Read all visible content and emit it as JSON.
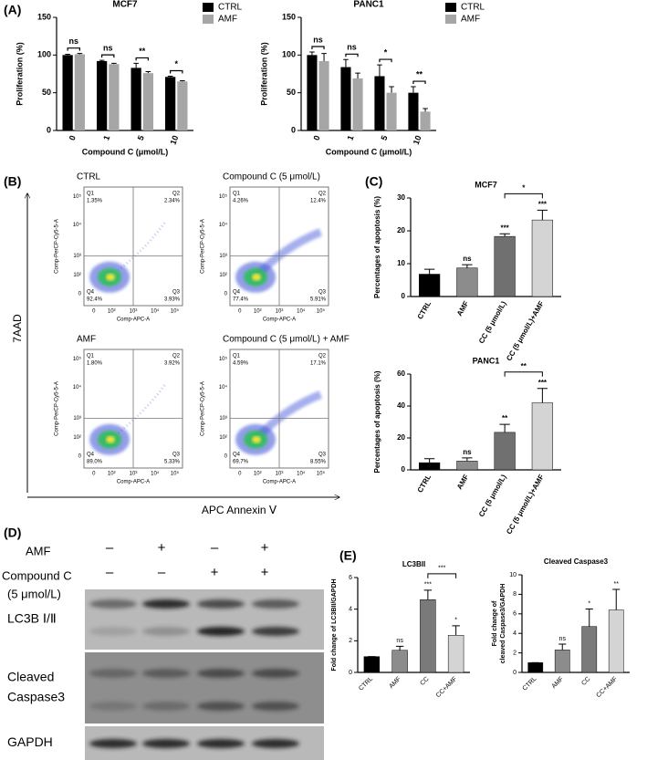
{
  "panel_labels": [
    "(A)",
    "(B)",
    "(C)",
    "(D)",
    "(E)"
  ],
  "chart_data": [
    {
      "type": "bar",
      "title": "MCF7",
      "x_label": "Compound C (μmol/L)",
      "y_label": "Proliferation (%)",
      "categories": [
        "0",
        "1",
        "5",
        "10"
      ],
      "series": [
        {
          "name": "CTRL",
          "color": "#000000",
          "values": [
            100,
            92,
            83,
            71
          ],
          "errors": [
            1,
            1,
            6,
            1
          ]
        },
        {
          "name": "AMF",
          "color": "#a6a6a6",
          "values": [
            101,
            88,
            76,
            65
          ],
          "errors": [
            1,
            1,
            2,
            1
          ]
        }
      ],
      "annotations": [
        "ns",
        "ns",
        "**",
        "*"
      ],
      "ylim": [
        0,
        150
      ],
      "yticks": [
        0,
        50,
        100,
        150
      ],
      "legend": "top-right"
    },
    {
      "type": "bar",
      "title": "PANC1",
      "x_label": "Compound C (μmol/L)",
      "y_label": "Proliferation (%)",
      "categories": [
        "0",
        "1",
        "5",
        "10"
      ],
      "series": [
        {
          "name": "CTRL",
          "color": "#000000",
          "values": [
            100,
            84,
            72,
            50
          ],
          "errors": [
            4,
            10,
            15,
            8
          ]
        },
        {
          "name": "AMF",
          "color": "#a6a6a6",
          "values": [
            92,
            69,
            50,
            25
          ],
          "errors": [
            10,
            7,
            8,
            4
          ]
        }
      ],
      "annotations": [
        "ns",
        "ns",
        "*",
        "**"
      ],
      "ylim": [
        0,
        150
      ],
      "yticks": [
        0,
        50,
        100,
        150
      ],
      "legend": "top-right"
    },
    {
      "type": "bar",
      "title": "MCF7",
      "y_label": "Percentages of apoptosis (%)",
      "categories": [
        "CTRL",
        "AMF",
        "CC (5 μmol/L)",
        "CC (5 μmol/L)+AMF"
      ],
      "values": [
        6.8,
        8.7,
        18.3,
        23.3
      ],
      "errors": [
        1.5,
        1,
        0.8,
        3
      ],
      "colors": [
        "#000000",
        "#8c8c8c",
        "#707070",
        "#d4d4d4"
      ],
      "annotations": [
        null,
        "ns",
        "***",
        "***"
      ],
      "bracket": "*",
      "ylim": [
        0,
        30
      ],
      "yticks": [
        0,
        10,
        20,
        30
      ]
    },
    {
      "type": "bar",
      "title": "PANC1",
      "y_label": "Percentages of apoptosis (%)",
      "categories": [
        "CTRL",
        "AMF",
        "CC (5 μmol/L)",
        "CC (5 μmol/L)+AMF"
      ],
      "values": [
        4.5,
        5.5,
        23.5,
        42
      ],
      "errors": [
        2.5,
        2,
        5,
        9
      ],
      "colors": [
        "#000000",
        "#8c8c8c",
        "#707070",
        "#d4d4d4"
      ],
      "annotations": [
        null,
        "ns",
        "**",
        "***"
      ],
      "bracket": "**",
      "ylim": [
        0,
        60
      ],
      "yticks": [
        0,
        20,
        40,
        60
      ]
    },
    {
      "type": "bar",
      "title": "LC3BII",
      "y_label": [
        "Fold change of LC3BII/GAPDH"
      ],
      "categories": [
        "CTRL",
        "AMF",
        "CC",
        "CC+AMF"
      ],
      "values": [
        1,
        1.4,
        4.6,
        2.35
      ],
      "errors": [
        0,
        0.25,
        0.6,
        0.6
      ],
      "colors": [
        "#000000",
        "#8c8c8c",
        "#7a7a7a",
        "#d4d4d4"
      ],
      "annotations": [
        null,
        "ns",
        "***",
        "*"
      ],
      "bracket": "***",
      "ylim": [
        0,
        6
      ],
      "yticks": [
        0,
        2,
        4,
        6
      ]
    },
    {
      "type": "bar",
      "title": "Cleaved Caspase3",
      "y_label": [
        "Fold change of",
        "cleaved Caspase3/GAPDH"
      ],
      "categories": [
        "CTRL",
        "AMF",
        "CC",
        "CC+AMF"
      ],
      "values": [
        1,
        2.3,
        4.7,
        6.4
      ],
      "errors": [
        0,
        0.6,
        1.8,
        2.1
      ],
      "colors": [
        "#000000",
        "#8c8c8c",
        "#7a7a7a",
        "#d4d4d4"
      ],
      "annotations": [
        null,
        "ns",
        "*",
        "**"
      ],
      "ylim": [
        0,
        10
      ],
      "yticks": [
        0,
        2,
        4,
        6,
        8,
        10
      ]
    }
  ],
  "flow_cytometry": {
    "y_axis_title": "7AAD",
    "x_axis_title": "APC Annexin Ⅴ",
    "plot_x_label": "Comp-APC-A",
    "plot_y_label": "Comp-PerCP-Cy5-5-A",
    "ticks": [
      "0",
      "10²",
      "10³",
      "10⁴",
      "10⁵"
    ],
    "quadrant_names": [
      "Q1",
      "Q2",
      "Q3",
      "Q4"
    ],
    "plots": [
      {
        "title": "CTRL",
        "quadrants": [
          "1.35%",
          "2.34%",
          "3.93%",
          "92.4%"
        ]
      },
      {
        "title": "Compound C (5 μmol/L)",
        "quadrants": [
          "4.26%",
          "12.4%",
          "5.91%",
          "77.4%"
        ]
      },
      {
        "title": "AMF",
        "quadrants": [
          "1.80%",
          "3.92%",
          "5.33%",
          "89.0%"
        ]
      },
      {
        "title": "Compound C (5 μmol/L) + AMF",
        "quadrants": [
          "4.59%",
          "17.1%",
          "8.55%",
          "69.7%"
        ]
      }
    ]
  },
  "western_blot": {
    "treatments": [
      {
        "label": "AMF",
        "signs": [
          "–",
          "+",
          "–",
          "+"
        ]
      },
      {
        "label": "Compound C",
        "sublabel": "(5 μmol/L)",
        "signs": [
          "–",
          "–",
          "+",
          "+"
        ]
      }
    ],
    "bands": [
      [
        "LC3B Ⅰ/Ⅱ"
      ],
      [
        "Cleaved",
        "Caspase3"
      ],
      [
        "GAPDH"
      ]
    ]
  }
}
